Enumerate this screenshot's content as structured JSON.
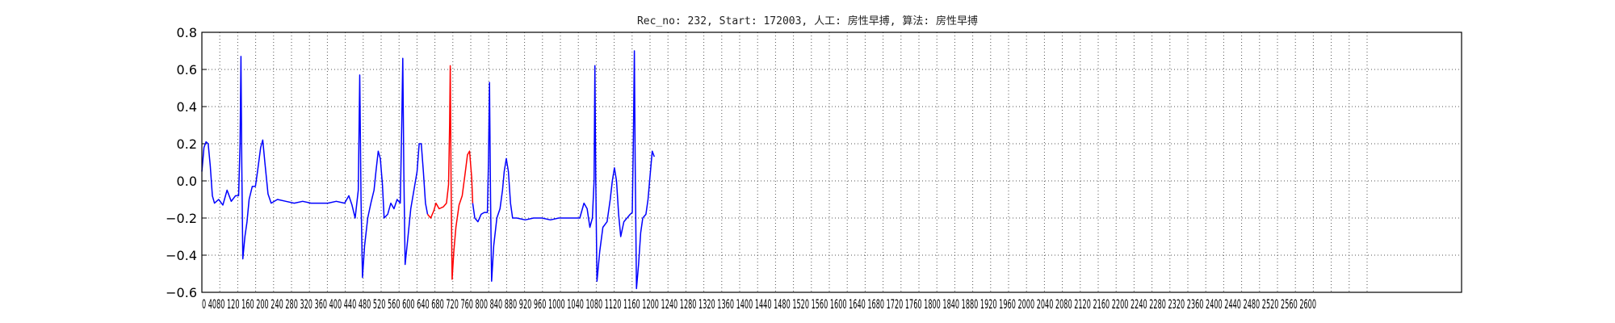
{
  "chart_data": {
    "type": "line",
    "title": "Rec_no: 232, Start: 172003, 人工: 房性早搏, 算法: 房性早搏",
    "xlim": [
      0,
      6000
    ],
    "ylim": [
      -0.6,
      0.8
    ],
    "grid": true,
    "y_ticks": [
      "0.8",
      "0.6",
      "0.4",
      "0.2",
      "0.0",
      "−0.2",
      "−0.4",
      "−0.6"
    ],
    "x_tick_labels": "0 4080 120 160 200 240 280 320 360 400 440 480 520 560 600 640 680 720 760 800 840 880 920 960 1000 1040 1080 1120 1160 1200 1240 1280 1320 1360 1400 1440 1480 1520 1560 1600 1640 1680 1720 1760 1800 1840 1880 1920 1960 2000 2040 2080 2120 2160 2200 2240 2280 2320 2360 2400 2440 2480 2520 2560 2600",
    "x_tick_count": 66,
    "series": [
      {
        "color": "#0000ff",
        "points": [
          [
            0,
            0.05
          ],
          [
            10,
            0.18
          ],
          [
            20,
            0.21
          ],
          [
            30,
            0.2
          ],
          [
            40,
            0.08
          ],
          [
            50,
            -0.08
          ],
          [
            60,
            -0.12
          ],
          [
            80,
            -0.1
          ],
          [
            100,
            -0.13
          ],
          [
            120,
            -0.05
          ],
          [
            140,
            -0.11
          ],
          [
            160,
            -0.08
          ],
          [
            175,
            -0.08
          ],
          [
            182,
            0.2
          ],
          [
            186,
            0.67
          ],
          [
            190,
            0.1
          ],
          [
            195,
            -0.42
          ],
          [
            205,
            -0.3
          ],
          [
            215,
            -0.22
          ],
          [
            225,
            -0.1
          ],
          [
            240,
            -0.03
          ],
          [
            255,
            -0.03
          ],
          [
            265,
            0.05
          ],
          [
            280,
            0.18
          ],
          [
            290,
            0.22
          ],
          [
            300,
            0.1
          ],
          [
            315,
            -0.07
          ],
          [
            330,
            -0.12
          ],
          [
            360,
            -0.1
          ],
          [
            400,
            -0.11
          ],
          [
            440,
            -0.12
          ],
          [
            480,
            -0.11
          ],
          [
            520,
            -0.12
          ],
          [
            560,
            -0.12
          ],
          [
            600,
            -0.12
          ],
          [
            640,
            -0.11
          ],
          [
            680,
            -0.12
          ],
          [
            700,
            -0.08
          ],
          [
            715,
            -0.13
          ],
          [
            730,
            -0.2
          ],
          [
            745,
            -0.05
          ],
          [
            752,
            0.57
          ],
          [
            758,
            -0.1
          ],
          [
            765,
            -0.52
          ],
          [
            775,
            -0.35
          ],
          [
            790,
            -0.2
          ],
          [
            805,
            -0.12
          ],
          [
            820,
            -0.05
          ],
          [
            830,
            0.06
          ],
          [
            840,
            0.16
          ],
          [
            850,
            0.12
          ],
          [
            860,
            -0.02
          ],
          [
            868,
            -0.2
          ],
          [
            885,
            -0.18
          ],
          [
            900,
            -0.12
          ],
          [
            915,
            -0.15
          ],
          [
            930,
            -0.1
          ],
          [
            945,
            -0.12
          ],
          [
            952,
            0.3
          ],
          [
            957,
            0.66
          ],
          [
            962,
            0.05
          ],
          [
            968,
            -0.45
          ],
          [
            980,
            -0.32
          ],
          [
            995,
            -0.15
          ],
          [
            1010,
            -0.05
          ],
          [
            1025,
            0.05
          ],
          [
            1035,
            0.2
          ],
          [
            1045,
            0.2
          ],
          [
            1055,
            0.05
          ],
          [
            1065,
            -0.12
          ],
          [
            1075,
            -0.18
          ]
        ]
      },
      {
        "color": "#ff0000",
        "points": [
          [
            1075,
            -0.18
          ],
          [
            1090,
            -0.2
          ],
          [
            1105,
            -0.16
          ],
          [
            1115,
            -0.12
          ],
          [
            1130,
            -0.15
          ],
          [
            1150,
            -0.14
          ],
          [
            1165,
            -0.12
          ],
          [
            1175,
            -0.02
          ],
          [
            1180,
            0.3
          ],
          [
            1183,
            0.62
          ],
          [
            1187,
            0.0
          ],
          [
            1192,
            -0.53
          ],
          [
            1200,
            -0.38
          ],
          [
            1210,
            -0.25
          ],
          [
            1225,
            -0.13
          ],
          [
            1240,
            -0.08
          ],
          [
            1255,
            0.05
          ],
          [
            1265,
            0.14
          ],
          [
            1275,
            0.16
          ],
          [
            1285,
            0.02
          ],
          [
            1290,
            -0.12
          ]
        ]
      },
      {
        "color": "#0000ff",
        "points": [
          [
            1290,
            -0.12
          ],
          [
            1300,
            -0.2
          ],
          [
            1315,
            -0.22
          ],
          [
            1330,
            -0.18
          ],
          [
            1345,
            -0.17
          ],
          [
            1360,
            -0.17
          ],
          [
            1365,
            0.1
          ],
          [
            1370,
            0.53
          ],
          [
            1375,
            -0.1
          ],
          [
            1380,
            -0.54
          ],
          [
            1390,
            -0.35
          ],
          [
            1405,
            -0.2
          ],
          [
            1420,
            -0.15
          ],
          [
            1432,
            -0.05
          ],
          [
            1440,
            0.05
          ],
          [
            1450,
            0.12
          ],
          [
            1460,
            0.05
          ],
          [
            1470,
            -0.12
          ],
          [
            1480,
            -0.2
          ],
          [
            1500,
            -0.2
          ],
          [
            1540,
            -0.21
          ],
          [
            1580,
            -0.2
          ],
          [
            1620,
            -0.2
          ],
          [
            1660,
            -0.21
          ],
          [
            1700,
            -0.2
          ],
          [
            1740,
            -0.2
          ],
          [
            1780,
            -0.2
          ],
          [
            1800,
            -0.2
          ],
          [
            1820,
            -0.12
          ],
          [
            1835,
            -0.15
          ],
          [
            1848,
            -0.25
          ],
          [
            1860,
            -0.2
          ],
          [
            1868,
            0.0
          ],
          [
            1872,
            0.62
          ],
          [
            1876,
            0.0
          ],
          [
            1882,
            -0.54
          ],
          [
            1895,
            -0.38
          ],
          [
            1910,
            -0.25
          ],
          [
            1930,
            -0.22
          ],
          [
            1945,
            -0.1
          ],
          [
            1955,
            0.0
          ],
          [
            1965,
            0.07
          ],
          [
            1975,
            0.0
          ],
          [
            1985,
            -0.18
          ],
          [
            1995,
            -0.3
          ],
          [
            2010,
            -0.22
          ],
          [
            2025,
            -0.2
          ],
          [
            2040,
            -0.18
          ],
          [
            2050,
            -0.17
          ],
          [
            2055,
            0.2
          ],
          [
            2060,
            0.7
          ],
          [
            2064,
            0.1
          ],
          [
            2070,
            -0.58
          ],
          [
            2080,
            -0.45
          ],
          [
            2090,
            -0.28
          ],
          [
            2100,
            -0.2
          ],
          [
            2115,
            -0.18
          ],
          [
            2125,
            -0.1
          ],
          [
            2135,
            0.03
          ],
          [
            2145,
            0.16
          ],
          [
            2155,
            0.13
          ]
        ]
      }
    ]
  }
}
